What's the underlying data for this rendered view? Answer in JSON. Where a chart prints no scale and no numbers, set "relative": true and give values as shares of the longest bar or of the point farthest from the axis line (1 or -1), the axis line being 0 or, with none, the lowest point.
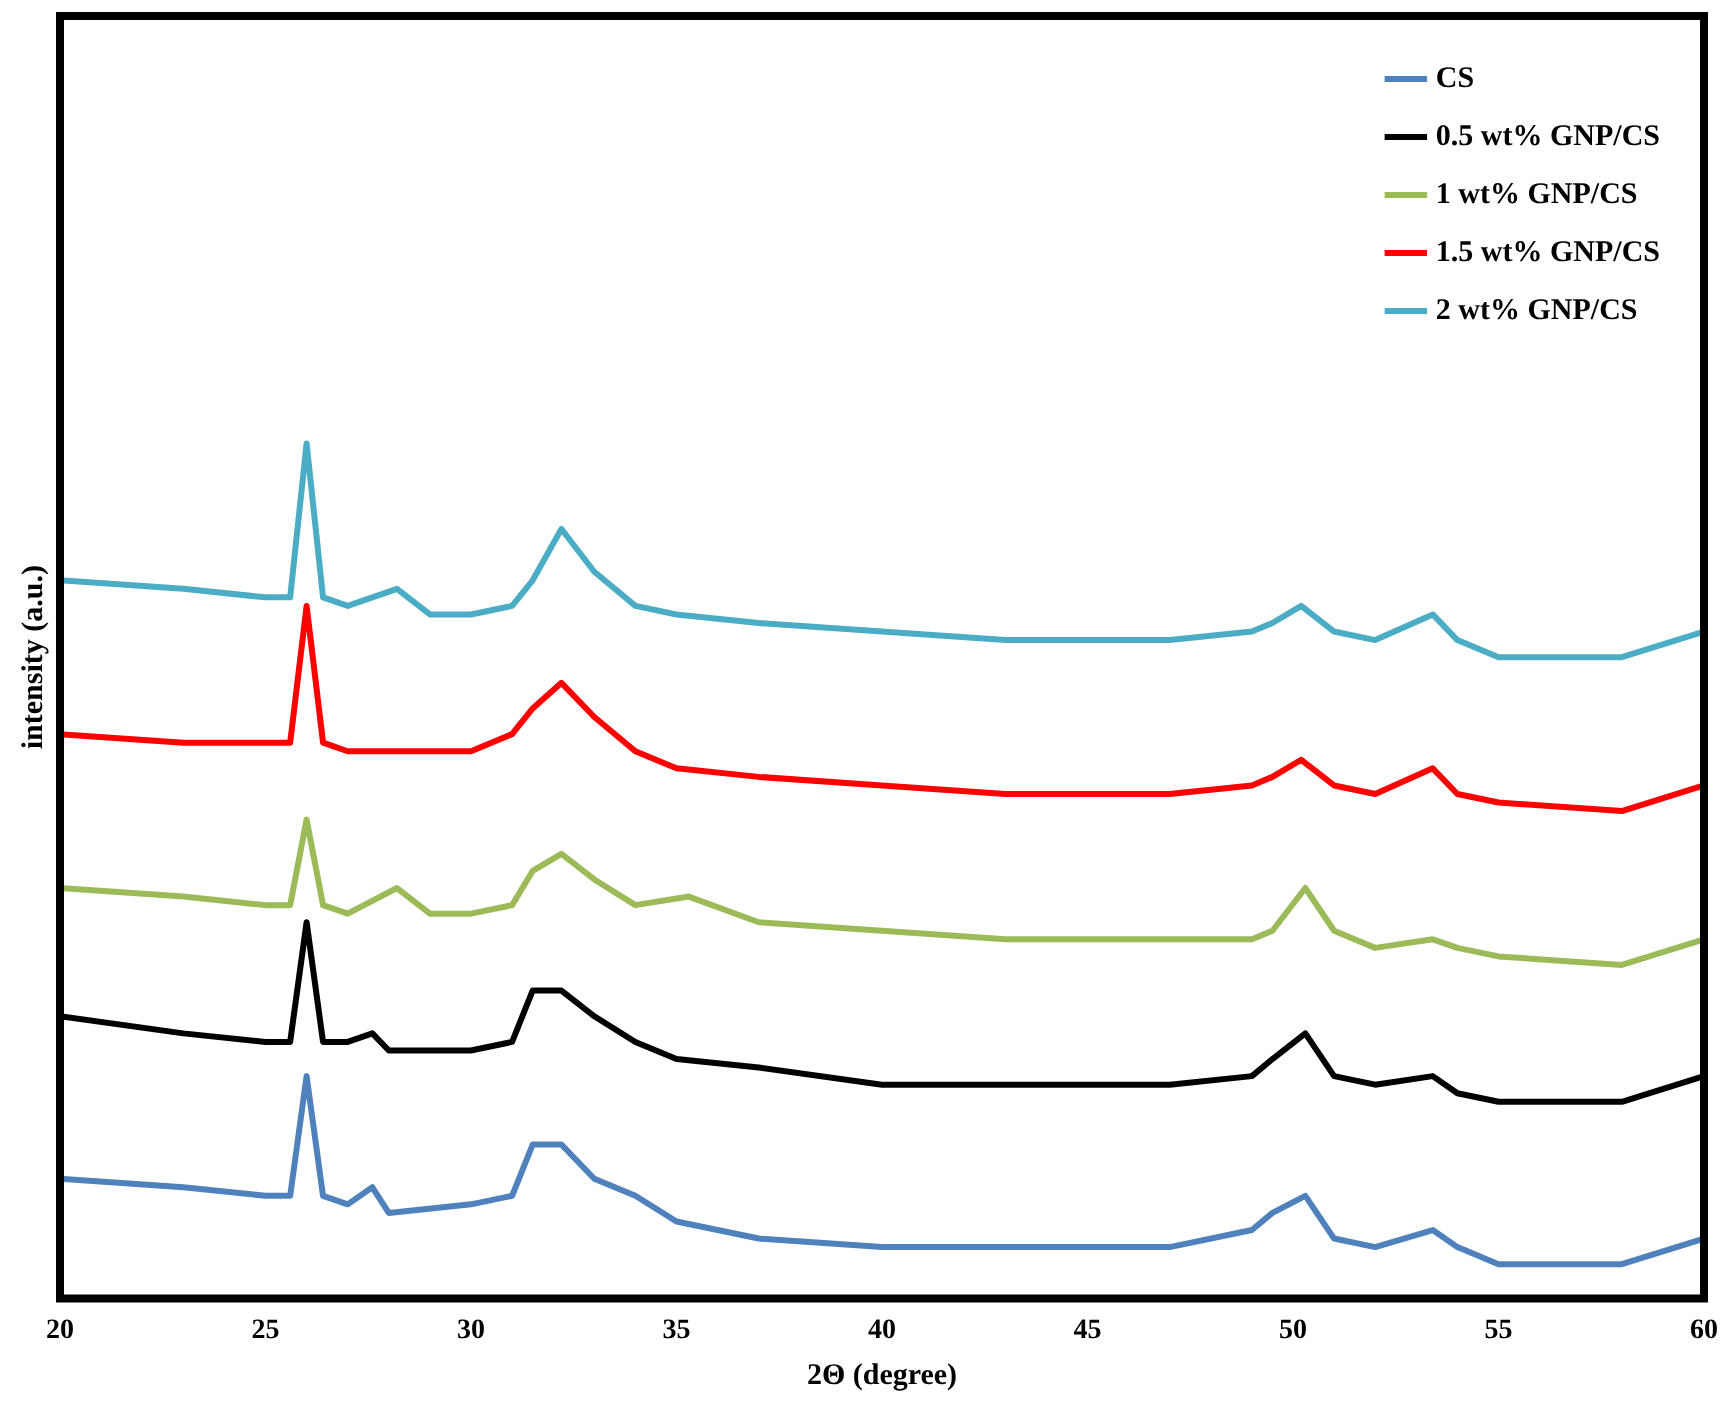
{
  "chart_data": {
    "type": "line",
    "relative": true,
    "xlabel": "2Θ (degree)",
    "ylabel": "intensity (a.u.)",
    "xlim": [
      20,
      60
    ],
    "xticks": [
      20,
      25,
      30,
      35,
      40,
      45,
      50,
      55,
      60
    ],
    "tick_labels": "x",
    "grid": false,
    "legend": "top right",
    "marker": "none",
    "line_style": "solid",
    "series": [
      {
        "name": "CS",
        "color": "#4f81bd",
        "x": [
          20,
          23,
          25,
          25.6,
          26,
          26.4,
          27,
          27.6,
          28,
          30,
          31,
          31.5,
          32.2,
          33,
          34,
          35,
          37,
          40,
          43,
          45,
          47,
          49,
          49.5,
          50.3,
          51,
          52,
          53.4,
          54,
          55,
          58,
          60
        ],
        "values": [
          0.14,
          0.13,
          0.12,
          0.12,
          0.26,
          0.12,
          0.11,
          0.13,
          0.1,
          0.11,
          0.12,
          0.18,
          0.18,
          0.14,
          0.12,
          0.09,
          0.07,
          0.06,
          0.06,
          0.06,
          0.06,
          0.08,
          0.1,
          0.12,
          0.07,
          0.06,
          0.08,
          0.06,
          0.04,
          0.04,
          0.07
        ]
      },
      {
        "name": "0.5 wt% GNP/CS",
        "color": "#000000",
        "x": [
          20,
          23,
          25,
          25.6,
          26,
          26.4,
          27,
          27.6,
          28,
          30,
          31,
          31.5,
          32.2,
          33,
          34,
          35,
          37,
          40,
          43,
          45,
          47,
          49,
          49.5,
          50.3,
          51,
          52,
          53.4,
          54,
          55,
          58,
          60
        ],
        "values": [
          0.33,
          0.31,
          0.3,
          0.3,
          0.44,
          0.3,
          0.3,
          0.31,
          0.29,
          0.29,
          0.3,
          0.36,
          0.36,
          0.33,
          0.3,
          0.28,
          0.27,
          0.25,
          0.25,
          0.25,
          0.25,
          0.26,
          0.28,
          0.31,
          0.26,
          0.25,
          0.26,
          0.24,
          0.23,
          0.23,
          0.26
        ]
      },
      {
        "name": "1 wt% GNP/CS",
        "color": "#9bbb59",
        "x": [
          20,
          23,
          25,
          25.6,
          26,
          26.4,
          27,
          28.2,
          29,
          30,
          31,
          31.5,
          32.2,
          33,
          34,
          35.3,
          37,
          40,
          43,
          45,
          47,
          49,
          49.5,
          50.3,
          51,
          52,
          53.4,
          54,
          55,
          58,
          60
        ],
        "values": [
          0.48,
          0.47,
          0.46,
          0.46,
          0.56,
          0.46,
          0.45,
          0.48,
          0.45,
          0.45,
          0.46,
          0.5,
          0.52,
          0.49,
          0.46,
          0.47,
          0.44,
          0.43,
          0.42,
          0.42,
          0.42,
          0.42,
          0.43,
          0.48,
          0.43,
          0.41,
          0.42,
          0.41,
          0.4,
          0.39,
          0.42
        ]
      },
      {
        "name": "1.5 wt% GNP/CS",
        "color": "#ff0000",
        "x": [
          20,
          23,
          25,
          25.6,
          26,
          26.4,
          27,
          28,
          30,
          31,
          31.5,
          32.2,
          33,
          34,
          35,
          37,
          40,
          43,
          45,
          47,
          49,
          49.5,
          50.2,
          51,
          52,
          53.4,
          54,
          55,
          58,
          60
        ],
        "values": [
          0.66,
          0.65,
          0.65,
          0.65,
          0.81,
          0.65,
          0.64,
          0.64,
          0.64,
          0.66,
          0.69,
          0.72,
          0.68,
          0.64,
          0.62,
          0.61,
          0.6,
          0.59,
          0.59,
          0.59,
          0.6,
          0.61,
          0.63,
          0.6,
          0.59,
          0.62,
          0.59,
          0.58,
          0.57,
          0.6
        ]
      },
      {
        "name": "2 wt% GNP/CS",
        "color": "#4bacc6",
        "x": [
          20,
          23,
          25,
          25.6,
          26,
          26.4,
          27,
          28.2,
          29,
          30,
          31,
          31.5,
          32.2,
          33,
          34,
          35,
          37,
          40,
          43,
          45,
          47,
          49,
          49.5,
          50.2,
          51,
          52,
          53.4,
          54,
          55,
          58,
          60
        ],
        "values": [
          0.84,
          0.83,
          0.82,
          0.82,
          1,
          0.82,
          0.81,
          0.83,
          0.8,
          0.8,
          0.81,
          0.84,
          0.9,
          0.85,
          0.81,
          0.8,
          0.79,
          0.78,
          0.77,
          0.77,
          0.77,
          0.78,
          0.79,
          0.81,
          0.78,
          0.77,
          0.8,
          0.77,
          0.75,
          0.75,
          0.78
        ]
      }
    ]
  }
}
